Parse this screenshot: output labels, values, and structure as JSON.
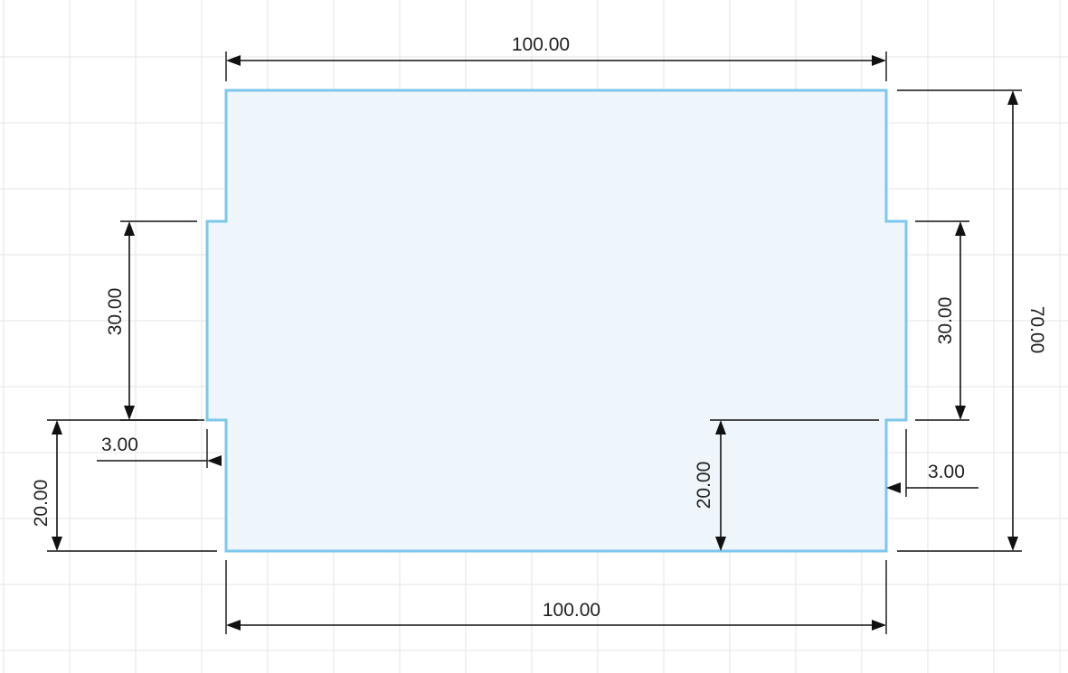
{
  "drawing": {
    "colors": {
      "background": "#ffffff",
      "grid": "#e6e6e6",
      "profile_fill": "#eef6fb",
      "profile_stroke": "#7cc7ec",
      "dimension": "#111111"
    },
    "dimensions": {
      "top_width": "100.00",
      "bottom_width": "100.00",
      "overall_height": "70.00",
      "left_tab_height": "30.00",
      "right_tab_height": "30.00",
      "left_lower_height": "20.00",
      "right_lower_height": "20.00",
      "left_tab_depth": "3.00",
      "right_tab_depth": "3.00"
    }
  }
}
